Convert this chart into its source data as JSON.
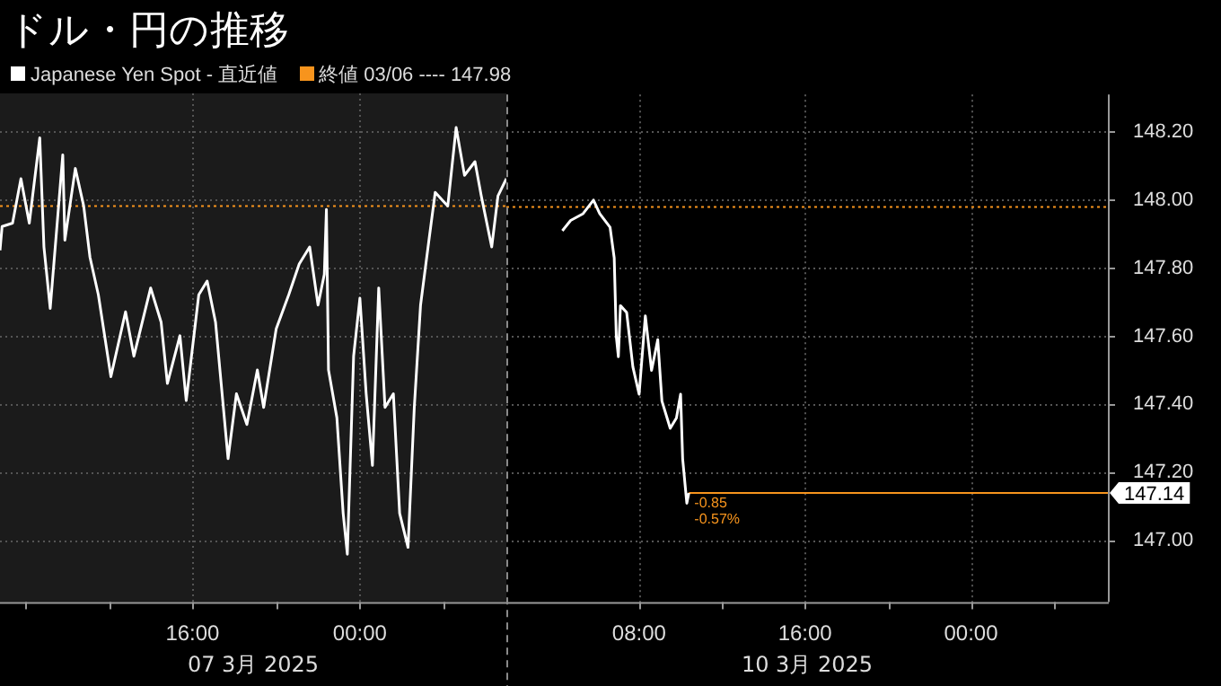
{
  "chart_data": [
    {
      "type": "line",
      "title": "ドル・円の推移",
      "xlabel": "07 3月 2025",
      "series": [
        {
          "name": "Japanese Yen Spot - 直近値",
          "color": "#ffffff",
          "x": [
            "2025-03-07T06:48",
            "2025-03-07T06:54",
            "2025-03-07T07:24",
            "2025-03-07T07:48",
            "2025-03-07T08:12",
            "2025-03-07T08:42",
            "2025-03-07T08:54",
            "2025-03-07T09:12",
            "2025-03-07T09:48",
            "2025-03-07T09:54",
            "2025-03-07T10:24",
            "2025-03-07T10:48",
            "2025-03-07T11:06",
            "2025-03-07T11:30",
            "2025-03-07T12:06",
            "2025-03-07T12:48",
            "2025-03-07T13:12",
            "2025-03-07T14:00",
            "2025-03-07T14:30",
            "2025-03-07T14:48",
            "2025-03-07T15:24",
            "2025-03-07T15:42",
            "2025-03-07T16:18",
            "2025-03-07T16:42",
            "2025-03-07T17:06",
            "2025-03-07T17:42",
            "2025-03-07T18:06",
            "2025-03-07T18:36",
            "2025-03-07T19:06",
            "2025-03-07T19:24",
            "2025-03-07T20:00",
            "2025-03-07T20:36",
            "2025-03-07T21:06",
            "2025-03-07T21:36",
            "2025-03-07T22:00",
            "2025-03-07T22:18",
            "2025-03-07T22:24",
            "2025-03-07T22:30",
            "2025-03-07T22:54",
            "2025-03-07T23:12",
            "2025-03-07T23:24",
            "2025-03-07T23:42",
            "2025-03-08T00:00",
            "2025-03-08T00:18",
            "2025-03-08T00:36",
            "2025-03-08T00:54",
            "2025-03-08T01:12",
            "2025-03-08T01:36",
            "2025-03-08T01:54",
            "2025-03-08T02:18",
            "2025-03-08T02:36",
            "2025-03-08T02:54",
            "2025-03-08T03:18",
            "2025-03-08T03:36",
            "2025-03-08T04:12",
            "2025-03-08T04:36",
            "2025-03-08T05:00",
            "2025-03-08T05:30",
            "2025-03-08T05:48",
            "2025-03-08T06:18",
            "2025-03-08T06:36",
            "2025-03-08T07:00"
          ],
          "values": [
            147.85,
            147.92,
            147.93,
            148.06,
            147.93,
            148.18,
            147.86,
            147.68,
            148.13,
            147.88,
            148.09,
            147.98,
            147.83,
            147.72,
            147.48,
            147.67,
            147.54,
            147.74,
            147.64,
            147.46,
            147.6,
            147.41,
            147.72,
            147.76,
            147.64,
            147.24,
            147.43,
            147.34,
            147.5,
            147.39,
            147.62,
            147.72,
            147.81,
            147.86,
            147.69,
            147.78,
            147.97,
            147.5,
            147.36,
            147.08,
            146.96,
            147.54,
            147.71,
            147.43,
            147.22,
            147.74,
            147.39,
            147.43,
            147.08,
            146.98,
            147.39,
            147.69,
            147.88,
            148.02,
            147.98,
            148.21,
            148.07,
            148.11,
            148.01,
            147.86,
            148.01,
            148.06
          ]
        }
      ],
      "xlim": [
        "2025-03-07T06:48",
        "2025-03-08T07:00"
      ],
      "xticks": [
        {
          "value": "2025-03-07T08:00",
          "label": null
        },
        {
          "value": "2025-03-07T12:00",
          "label": null
        },
        {
          "value": "2025-03-07T16:00",
          "label": "16:00"
        },
        {
          "value": "2025-03-07T20:00",
          "label": null
        },
        {
          "value": "2025-03-08T00:00",
          "label": "00:00"
        },
        {
          "value": "2025-03-08T04:00",
          "label": null
        }
      ],
      "ylim": [
        146.82,
        148.31
      ],
      "yticks": [
        147.0,
        147.2,
        147.4,
        147.6,
        147.8,
        148.0,
        148.2
      ],
      "tick_labels": "x",
      "grid": true,
      "legend": "top left",
      "marker": "none",
      "line_style": "solid",
      "bands": [
        {
          "axis": "x",
          "from": "2025-03-07T06:48",
          "to": "2025-03-08T07:00",
          "color": "#1b1b1b"
        }
      ],
      "ref_lines": [
        {
          "axis": "y",
          "value": 147.98,
          "label": "終値 03/06 ---- 147.98",
          "color": "#f7941d",
          "line_style": "dotted"
        }
      ]
    },
    {
      "type": "line",
      "xlabel": "10 3月 2025",
      "series": [
        {
          "color": "#ffffff",
          "x": [
            "2025-03-10T04:18",
            "2025-03-10T04:42",
            "2025-03-10T05:18",
            "2025-03-10T05:48",
            "2025-03-10T06:06",
            "2025-03-10T06:36",
            "2025-03-10T06:48",
            "2025-03-10T06:54",
            "2025-03-10T07:00",
            "2025-03-10T07:06",
            "2025-03-10T07:24",
            "2025-03-10T07:42",
            "2025-03-10T08:00",
            "2025-03-10T08:18",
            "2025-03-10T08:36",
            "2025-03-10T08:54",
            "2025-03-10T09:06",
            "2025-03-10T09:30",
            "2025-03-10T09:48",
            "2025-03-10T10:00",
            "2025-03-10T10:06",
            "2025-03-10T10:18",
            "2025-03-10T10:24"
          ],
          "values": [
            147.91,
            147.94,
            147.96,
            148.0,
            147.96,
            147.92,
            147.83,
            147.6,
            147.54,
            147.69,
            147.67,
            147.51,
            147.43,
            147.66,
            147.5,
            147.59,
            147.41,
            147.33,
            147.36,
            147.43,
            147.24,
            147.11,
            147.14
          ]
        }
      ],
      "xlim": [
        "2025-03-10T01:36",
        "2025-03-11T06:36"
      ],
      "xticks": [
        {
          "value": "2025-03-10T08:00",
          "label": "08:00"
        },
        {
          "value": "2025-03-10T12:00",
          "label": null
        },
        {
          "value": "2025-03-10T16:00",
          "label": "16:00"
        },
        {
          "value": "2025-03-10T20:00",
          "label": null
        },
        {
          "value": "2025-03-11T00:00",
          "label": "00:00"
        },
        {
          "value": "2025-03-11T04:00",
          "label": null
        }
      ],
      "ylim": [
        146.82,
        148.31
      ],
      "yticks": [
        {
          "value": 147.0,
          "label": "147.00"
        },
        {
          "value": 147.2,
          "label": "147.20"
        },
        {
          "value": 147.4,
          "label": "147.40"
        },
        {
          "value": 147.6,
          "label": "147.60"
        },
        {
          "value": 147.8,
          "label": "147.80"
        },
        {
          "value": 148.0,
          "label": "148.00"
        },
        {
          "value": 148.2,
          "label": "148.20"
        }
      ],
      "grid": true,
      "marker": "none",
      "line_style": "solid",
      "ref_lines": [
        {
          "axis": "y",
          "value": 147.98,
          "color": "#f7941d",
          "line_style": "dotted"
        },
        {
          "axis": "y",
          "value": 147.14,
          "label": "147.14",
          "color": "#f7941d",
          "line_style": "solid"
        }
      ],
      "annotations": [
        {
          "text": "-0.85",
          "x": "2025-03-10T10:24",
          "y": 147.14
        },
        {
          "text": "-0.57%",
          "x": "2025-03-10T10:24",
          "y": 147.14
        }
      ]
    }
  ]
}
